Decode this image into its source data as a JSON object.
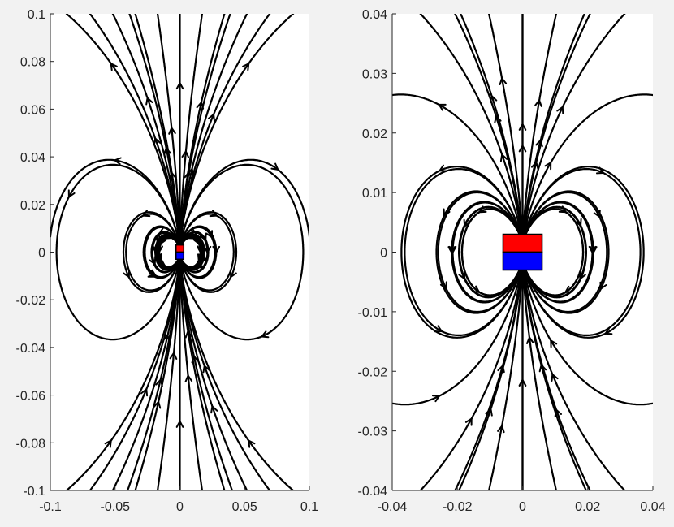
{
  "chart_data": [
    {
      "type": "streamline",
      "xlim": [
        -0.1,
        0.1
      ],
      "ylim": [
        -0.1,
        0.1
      ],
      "xticks": [
        -0.1,
        -0.05,
        0,
        0.05,
        0.1
      ],
      "xtick_labels": [
        "-0.1",
        "-0.05",
        "0",
        "0.05",
        "0.1"
      ],
      "yticks": [
        -0.1,
        -0.08,
        -0.06,
        -0.04,
        -0.02,
        0,
        0.02,
        0.04,
        0.06,
        0.08,
        0.1
      ],
      "ytick_labels": [
        "-0.1",
        "-0.08",
        "-0.06",
        "-0.04",
        "-0.02",
        "0",
        "0.02",
        "0.04",
        "0.06",
        "0.08",
        "0.1"
      ],
      "magnet": {
        "x": [
          -0.003,
          0.003
        ],
        "north_y": [
          0,
          0.003
        ],
        "south_y": [
          -0.003,
          0
        ],
        "north_color": "#ff0000",
        "south_color": "#0000ff"
      },
      "grid": false,
      "line_color": "#000000"
    },
    {
      "type": "streamline",
      "xlim": [
        -0.04,
        0.04
      ],
      "ylim": [
        -0.04,
        0.04
      ],
      "xticks": [
        -0.04,
        -0.02,
        0,
        0.02,
        0.04
      ],
      "xtick_labels": [
        "-0.04",
        "-0.02",
        "0",
        "0.02",
        "0.04"
      ],
      "yticks": [
        -0.04,
        -0.03,
        -0.02,
        -0.01,
        0,
        0.01,
        0.02,
        0.03,
        0.04
      ],
      "ytick_labels": [
        "-0.04",
        "-0.03",
        "-0.02",
        "-0.01",
        "0",
        "0.01",
        "0.02",
        "0.03",
        "0.04"
      ],
      "magnet": {
        "x": [
          -0.006,
          0.006
        ],
        "north_y": [
          0,
          0.003
        ],
        "south_y": [
          -0.003,
          0
        ],
        "north_color": "#ff0000",
        "south_color": "#0000ff"
      },
      "grid": false,
      "line_color": "#000000"
    }
  ]
}
